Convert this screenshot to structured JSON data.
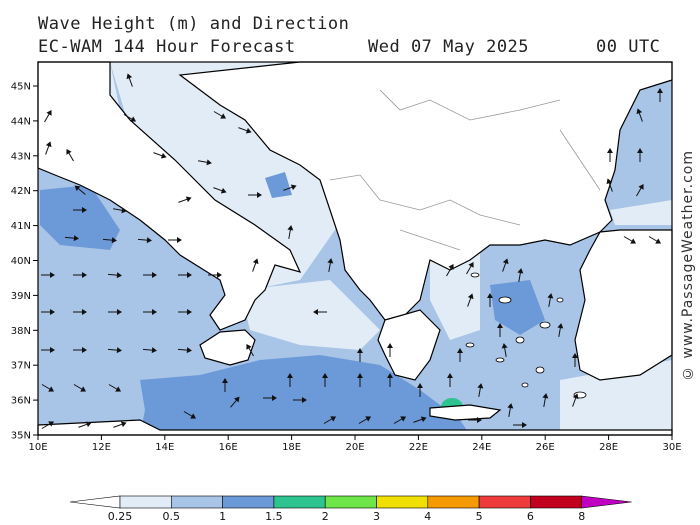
{
  "header": {
    "title": "Wave Height (m) and Direction",
    "model": "EC-WAM 144 Hour Forecast",
    "date": "Wed 07 May 2025",
    "time": "00 UTC"
  },
  "credit": "© www.PassageWeather.com",
  "axes": {
    "x_ticks": [
      "10E",
      "12E",
      "14E",
      "16E",
      "18E",
      "20E",
      "22E",
      "24E",
      "26E",
      "28E",
      "30E"
    ],
    "y_ticks": [
      "45N",
      "44N",
      "43N",
      "42N",
      "41N",
      "40N",
      "39N",
      "38N",
      "37N",
      "36N",
      "35N"
    ]
  },
  "colors": {
    "land": "#ffffff",
    "sea_025": "#e2ecf7",
    "sea_05": "#a8c4e6",
    "sea_1": "#6c9ad8",
    "sea_15": "#2ec48f",
    "arrow": "#111111"
  },
  "colorbar": {
    "labels": [
      "0.25",
      "0.5",
      "1",
      "1.5",
      "2",
      "3",
      "4",
      "5",
      "6",
      "8"
    ],
    "colors": [
      "#e2ecf7",
      "#a8c4e6",
      "#6c9ad8",
      "#2ec48f",
      "#6ee64a",
      "#f0e000",
      "#f59a00",
      "#ee3c3c",
      "#c2001e",
      "#c000c0"
    ]
  }
}
